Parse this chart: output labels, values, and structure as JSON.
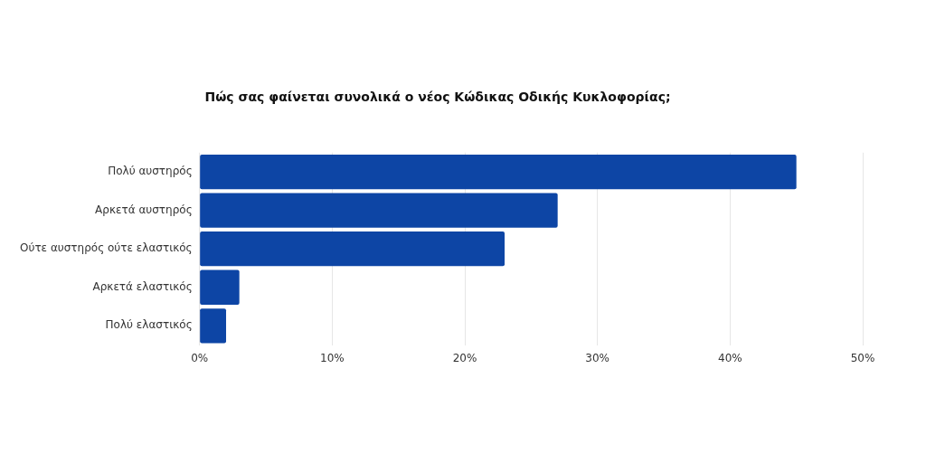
{
  "chart_data": {
    "type": "bar",
    "orientation": "horizontal",
    "title": "Πώς σας φαίνεται συνολικά ο νέος Κώδικας Οδικής Κυκλοφορίας;",
    "categories": [
      "Πολύ αυστηρός",
      "Αρκετά αυστηρός",
      "Ούτε αυστηρός ούτε ελαστικός",
      "Αρκετά ελαστικός",
      "Πολύ ελαστικός"
    ],
    "values": [
      45,
      27,
      23,
      3,
      2
    ],
    "color": "#0d45a5",
    "xlim": [
      0,
      50
    ],
    "xticks": [
      {
        "value": 0,
        "label": "0%"
      },
      {
        "value": 10,
        "label": "10%"
      },
      {
        "value": 20,
        "label": "20%"
      },
      {
        "value": 30,
        "label": "30%"
      },
      {
        "value": 40,
        "label": "40%"
      },
      {
        "value": 50,
        "label": "50%"
      }
    ],
    "grid": "x",
    "legend": false
  }
}
